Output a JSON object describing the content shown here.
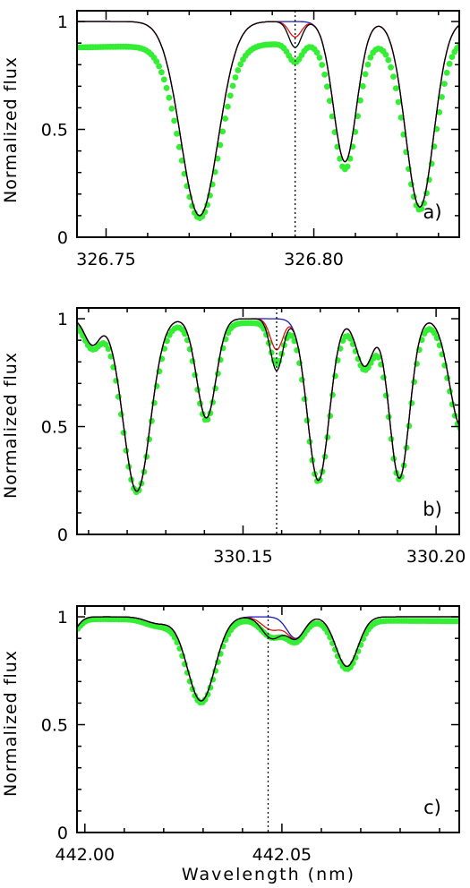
{
  "figure": {
    "xlabel": "Wavelength (nm)"
  },
  "colors": {
    "observed": "#33ee33",
    "model_blue": "#1a1ab4",
    "model_red": "#e01010",
    "model_black": "#000000"
  },
  "chart_data": [
    {
      "type": "line",
      "panel_label": "a)",
      "ylabel": "Normalized flux",
      "xlim": [
        326.743,
        326.835
      ],
      "ylim": [
        0,
        1.05
      ],
      "x_ticks": [
        326.75,
        326.8
      ],
      "x_tick_labels": [
        "326.75",
        "326.80"
      ],
      "y_ticks": [
        0,
        0.5,
        1
      ],
      "y_tick_labels": [
        "0",
        "0.5",
        "1"
      ],
      "marker_x": 326.7955,
      "lines": [
        {
          "x": 326.7405,
          "depth": 0.0,
          "width": 0.003
        },
        {
          "x": 326.7725,
          "depth": 0.9,
          "width": 0.0045
        },
        {
          "x": 326.7955,
          "depth": 0.12,
          "width": 0.0015,
          "mode": "variant"
        },
        {
          "x": 326.8075,
          "depth": 0.65,
          "width": 0.0028
        },
        {
          "x": 326.8255,
          "depth": 0.86,
          "width": 0.0034
        }
      ],
      "series": [
        {
          "role": "observed",
          "color_key": "observed",
          "offset": 0.0001,
          "scale": 1.0,
          "cont_slope": [
            0.88,
            0.91
          ],
          "dots": true
        },
        {
          "role": "model-blue",
          "color_key": "model_blue",
          "variant": 0.0
        },
        {
          "role": "model-red",
          "color_key": "model_red",
          "variant": 0.6
        },
        {
          "role": "model-black",
          "color_key": "model_black",
          "variant": 1.0
        }
      ]
    },
    {
      "type": "line",
      "panel_label": "b)",
      "ylabel": "Normalized flux",
      "xlim": [
        330.107,
        330.206
      ],
      "ylim": [
        0,
        1.05
      ],
      "x_ticks": [
        330.15,
        330.2
      ],
      "x_tick_labels": [
        "330.15",
        "330.20"
      ],
      "y_ticks": [
        0,
        0.5,
        1
      ],
      "y_tick_labels": [
        "0",
        "0.5",
        "1"
      ],
      "marker_x": 330.1587,
      "lines": [
        {
          "x": 330.111,
          "depth": 0.12,
          "width": 0.002
        },
        {
          "x": 330.1225,
          "depth": 0.8,
          "width": 0.0035
        },
        {
          "x": 330.1405,
          "depth": 0.46,
          "width": 0.0025
        },
        {
          "x": 330.1587,
          "depth": 0.24,
          "width": 0.0016,
          "mode": "variant"
        },
        {
          "x": 330.1695,
          "depth": 0.75,
          "width": 0.0028
        },
        {
          "x": 330.1815,
          "depth": 0.22,
          "width": 0.0022
        },
        {
          "x": 330.1905,
          "depth": 0.74,
          "width": 0.0026
        },
        {
          "x": 330.2065,
          "depth": 0.5,
          "width": 0.003
        }
      ],
      "series": [
        {
          "role": "observed",
          "color_key": "observed",
          "offset": 0.0002,
          "scale": 1.0,
          "cont_slope": [
            0.98,
            0.98
          ],
          "dots": true
        },
        {
          "role": "model-blue",
          "color_key": "model_blue",
          "variant": 0.0
        },
        {
          "role": "model-red",
          "color_key": "model_red",
          "variant": 0.6
        },
        {
          "role": "model-black",
          "color_key": "model_black",
          "variant": 1.0
        }
      ]
    },
    {
      "type": "line",
      "panel_label": "c)",
      "ylabel": "Normalized flux",
      "xlim": [
        441.998,
        442.095
      ],
      "ylim": [
        0,
        1.05
      ],
      "x_ticks": [
        442.0,
        442.05
      ],
      "x_tick_labels": [
        "442.00",
        "442.05"
      ],
      "y_ticks": [
        0,
        0.5,
        1
      ],
      "y_tick_labels": [
        "0",
        "0.5",
        "1"
      ],
      "marker_x": 442.0465,
      "lines": [
        {
          "x": 441.996,
          "depth": 0.08,
          "width": 0.002
        },
        {
          "x": 442.0185,
          "depth": 0.03,
          "width": 0.003
        },
        {
          "x": 442.0295,
          "depth": 0.39,
          "width": 0.0035
        },
        {
          "x": 442.0475,
          "depth": 0.1,
          "width": 0.0025,
          "mode": "variant"
        },
        {
          "x": 442.0535,
          "depth": 0.1,
          "width": 0.0022
        },
        {
          "x": 442.0665,
          "depth": 0.23,
          "width": 0.0028
        }
      ],
      "series": [
        {
          "role": "observed",
          "color_key": "observed",
          "offset": 0.0002,
          "scale": 1.0,
          "cont_slope": [
            0.99,
            0.98
          ],
          "dots": true
        },
        {
          "role": "model-blue",
          "color_key": "model_blue",
          "variant": 0.0
        },
        {
          "role": "model-red",
          "color_key": "model_red",
          "variant": 0.6
        },
        {
          "role": "model-black",
          "color_key": "model_black",
          "variant": 1.0
        }
      ]
    }
  ]
}
